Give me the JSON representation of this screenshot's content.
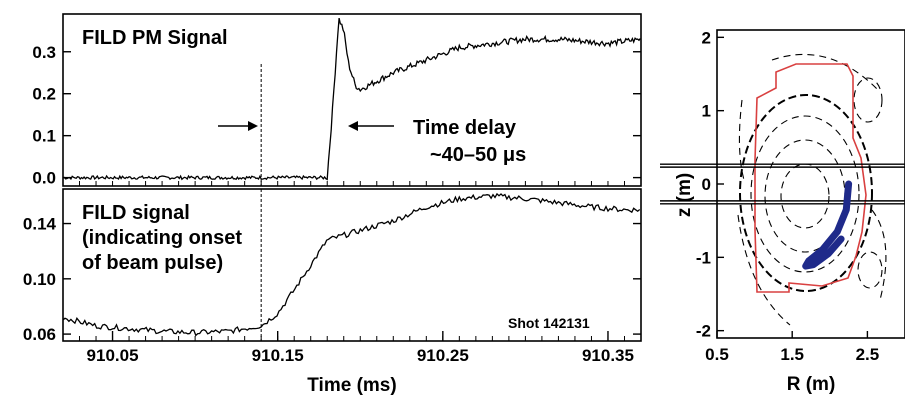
{
  "chart_data": [
    {
      "type": "line",
      "panel": "top",
      "title": "FILD PM Signal",
      "ylim": [
        -0.02,
        0.39
      ],
      "yticks": [
        "0.0",
        "0.1",
        "0.2",
        "0.3"
      ],
      "yticks_values": [
        0.0,
        0.1,
        0.2,
        0.3
      ],
      "xlim": [
        910.02,
        910.37
      ],
      "grid": false,
      "series": [
        {
          "x": [
            910.02,
            910.18,
            910.183,
            910.187,
            910.19,
            910.193,
            910.197,
            910.2,
            910.21,
            910.22,
            910.24,
            910.26,
            910.28,
            910.3,
            910.32,
            910.35,
            910.37
          ],
          "y": [
            0.0,
            0.0,
            0.15,
            0.38,
            0.35,
            0.27,
            0.22,
            0.21,
            0.23,
            0.25,
            0.28,
            0.31,
            0.32,
            0.33,
            0.33,
            0.32,
            0.33
          ]
        }
      ],
      "annotations": {
        "delay_line1": "Time delay",
        "delay_line2": "~40–50 μs",
        "onset_x": 910.14,
        "rise_x": 910.18
      }
    },
    {
      "type": "line",
      "panel": "bottom",
      "title_lines": [
        "FILD signal",
        "(indicating onset",
        "of beam pulse)"
      ],
      "ylim": [
        0.055,
        0.165
      ],
      "yticks": [
        "0.06",
        "0.10",
        "0.14"
      ],
      "yticks_values": [
        0.06,
        0.1,
        0.14
      ],
      "xlim": [
        910.02,
        910.37
      ],
      "xticks": [
        "910.05",
        "910.15",
        "910.25",
        "910.35"
      ],
      "xticks_values": [
        910.05,
        910.15,
        910.25,
        910.35
      ],
      "xlabel": "Time (ms)",
      "annotation": "Shot 142131",
      "series": [
        {
          "x": [
            910.02,
            910.04,
            910.06,
            910.08,
            910.1,
            910.12,
            910.14,
            910.15,
            910.16,
            910.17,
            910.18,
            910.2,
            910.22,
            910.24,
            910.26,
            910.28,
            910.3,
            910.32,
            910.34,
            910.36,
            910.37
          ],
          "y": [
            0.072,
            0.066,
            0.064,
            0.062,
            0.061,
            0.062,
            0.066,
            0.075,
            0.092,
            0.11,
            0.128,
            0.135,
            0.142,
            0.152,
            0.158,
            0.16,
            0.158,
            0.155,
            0.152,
            0.15,
            0.15
          ]
        }
      ]
    },
    {
      "type": "diagram",
      "panel": "right",
      "xlim": [
        0.5,
        3.0
      ],
      "ylim": [
        -2.1,
        2.1
      ],
      "xticks": [
        "0.5",
        "1.5",
        "2.5"
      ],
      "xticks_values": [
        0.5,
        1.5,
        2.5
      ],
      "yticks": [
        "2",
        "1",
        "0",
        "-1",
        "-2"
      ],
      "yticks_values": [
        2,
        1,
        0,
        -1,
        -2
      ],
      "xlabel": "R (m)",
      "ylabel": "z (m)",
      "horizontal_lines_z": [
        0.23,
        0.27,
        -0.23,
        -0.27
      ],
      "wall_color": "#d94040",
      "orbit_color": "#1f2a8a",
      "orbit": [
        {
          "R": 2.25,
          "z": 0.0
        },
        {
          "R": 2.22,
          "z": -0.35
        },
        {
          "R": 2.1,
          "z": -0.65
        },
        {
          "R": 1.9,
          "z": -0.9
        },
        {
          "R": 1.72,
          "z": -1.05
        },
        {
          "R": 1.68,
          "z": -1.12
        },
        {
          "R": 1.78,
          "z": -1.1
        },
        {
          "R": 1.98,
          "z": -0.95
        },
        {
          "R": 2.15,
          "z": -0.75
        }
      ]
    }
  ]
}
